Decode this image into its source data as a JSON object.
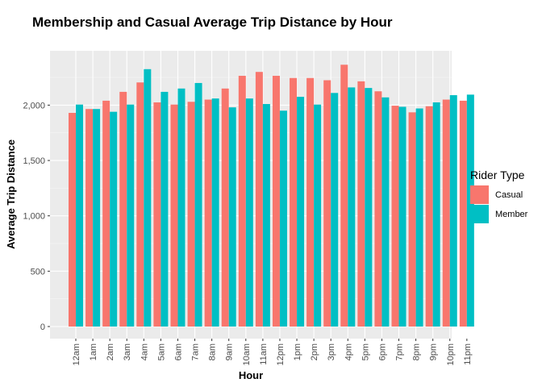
{
  "chart_data": {
    "type": "bar",
    "title": "Membership and Casual Average Trip Distance by Hour",
    "xlabel": "Hour",
    "ylabel": "Average Trip Distance",
    "ylim": [
      0,
      2450
    ],
    "yticks": [
      0,
      500,
      1000,
      1500,
      2000
    ],
    "ytick_labels": [
      "0",
      "500",
      "1,000",
      "1,500",
      "2,000"
    ],
    "grid": true,
    "legend": {
      "title": "Rider Type",
      "placement": "right"
    },
    "categories": [
      "12am",
      "1am",
      "2am",
      "3am",
      "4am",
      "5am",
      "6am",
      "7am",
      "8am",
      "9am",
      "10am",
      "11am",
      "12pm",
      "1pm",
      "2pm",
      "3pm",
      "4pm",
      "5pm",
      "6pm",
      "7pm",
      "8pm",
      "9pm",
      "10pm",
      "11pm"
    ],
    "series": [
      {
        "name": "Casual",
        "color": "#F8766D",
        "values": [
          1930,
          1965,
          2040,
          2120,
          2205,
          2025,
          2005,
          2030,
          2050,
          2150,
          2265,
          2300,
          2265,
          2245,
          2245,
          2225,
          2365,
          2215,
          2125,
          1995,
          1935,
          1990,
          2050,
          2040
        ]
      },
      {
        "name": "Member",
        "color": "#00BFC4",
        "values": [
          2005,
          1965,
          1940,
          2005,
          2325,
          2120,
          2150,
          2200,
          2060,
          1980,
          2060,
          2010,
          1950,
          2075,
          2005,
          2110,
          2160,
          2155,
          2070,
          1985,
          1970,
          2025,
          2090,
          2095
        ]
      }
    ]
  }
}
